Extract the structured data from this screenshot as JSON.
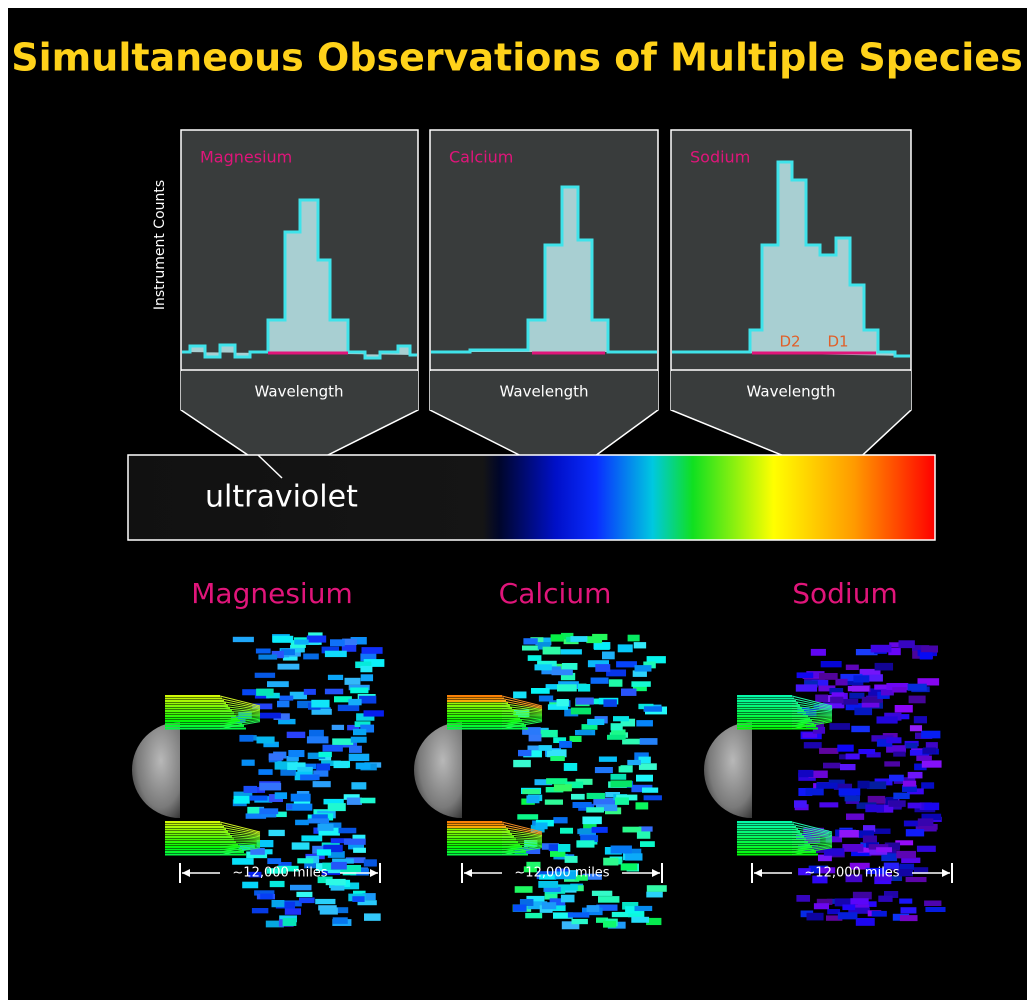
{
  "title": "Simultaneous Observations of Multiple Species",
  "y_label": "Instrument Counts",
  "spectra": [
    {
      "label": "Magnesium",
      "x_label": "Wavelength"
    },
    {
      "label": "Calcium",
      "x_label": "Wavelength"
    },
    {
      "label": "Sodium",
      "x_label": "Wavelength",
      "lines": [
        "D2",
        "D1"
      ]
    }
  ],
  "spectrum_label": "ultraviolet",
  "maps": [
    {
      "label": "Magnesium",
      "scale": "~12,000 miles"
    },
    {
      "label": "Calcium",
      "scale": "~12,000 miles"
    },
    {
      "label": "Sodium",
      "scale": "~12,000 miles"
    }
  ]
}
